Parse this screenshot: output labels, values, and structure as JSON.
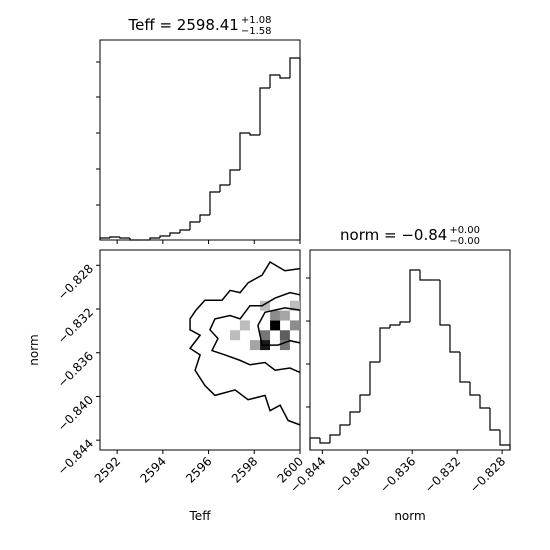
{
  "chart_data": [
    {
      "type": "histogram",
      "title": {
        "text": "Teff = 2598.41",
        "sup": "+1.08",
        "sub": "−1.58"
      },
      "color": "#000000",
      "bins": [
        2591.25,
        2591.6875,
        2592.125,
        2592.5625,
        2593,
        2593.4375,
        2593.875,
        2594.3125,
        2594.75,
        2595.1875,
        2595.625,
        2596.0625,
        2596.5,
        2596.9375,
        2597.375,
        2597.8125,
        2598.25,
        2598.6875,
        2599.125,
        2599.5625,
        2600
      ],
      "values": [
        2,
        3,
        2,
        0,
        0,
        2,
        4,
        7,
        10,
        18,
        25,
        48,
        55,
        70,
        107,
        105,
        152,
        165,
        162,
        182
      ],
      "xlim": [
        2591.25,
        2600
      ],
      "xticks": [
        2592,
        2594,
        2596,
        2598,
        2600
      ],
      "ylim": [
        0,
        200
      ],
      "yticks": [
        35,
        71,
        107,
        143,
        178
      ]
    },
    {
      "type": "contour",
      "xlabel": "Teff",
      "ylabel": "norm",
      "color": "#000000",
      "xlim": [
        2591.25,
        2600
      ],
      "xticks": [
        2592,
        2594,
        2596,
        2598,
        2600
      ],
      "ylim": [
        -0.8449,
        -0.8266
      ],
      "yticks": [
        {
          "value": -0.828,
          "label": "−0.828"
        },
        {
          "value": -0.832,
          "label": "−0.832"
        },
        {
          "value": -0.836,
          "label": "−0.836"
        },
        {
          "value": -0.84,
          "label": "−0.840"
        },
        {
          "value": -0.844,
          "label": "−0.844"
        }
      ],
      "contours": [
        {
          "x": [
            2600.0,
            2599.34,
            2598.69,
            2598.34,
            2597.73,
            2597.38,
            2596.94,
            2596.59,
            2595.84,
            2595.45,
            2595.19,
            2595.19,
            2595.63,
            2595.19,
            2595.63,
            2595.41,
            2595.84,
            2596.28,
            2597.16,
            2597.73,
            2598.47,
            2598.69,
            2599.13,
            2599.48,
            2600.0
          ],
          "y": [
            -0.8283,
            -0.8285,
            -0.8277,
            -0.8289,
            -0.8296,
            -0.8305,
            -0.8303,
            -0.8312,
            -0.8312,
            -0.8321,
            -0.8329,
            -0.8339,
            -0.8344,
            -0.8356,
            -0.8362,
            -0.8376,
            -0.839,
            -0.8399,
            -0.8394,
            -0.8403,
            -0.8399,
            -0.8413,
            -0.8408,
            -0.8422,
            -0.8426
          ]
        },
        {
          "x": [
            2600.0,
            2599.56,
            2598.91,
            2598.34,
            2597.81,
            2597.38,
            2596.94,
            2596.28,
            2596.06,
            2596.41,
            2596.15,
            2596.72,
            2597.38,
            2597.81,
            2598.47,
            2598.91,
            2599.56,
            2600.0
          ],
          "y": [
            -0.8307,
            -0.8305,
            -0.831,
            -0.8317,
            -0.8317,
            -0.8329,
            -0.8326,
            -0.8329,
            -0.8339,
            -0.8347,
            -0.8358,
            -0.8362,
            -0.8367,
            -0.8371,
            -0.8369,
            -0.8376,
            -0.8374,
            -0.8378
          ]
        },
        {
          "x": [
            2600.0,
            2599.34,
            2598.47,
            2598.16,
            2598.34,
            2599.04,
            2599.56,
            2600.0
          ],
          "y": [
            -0.8321,
            -0.8319,
            -0.8323,
            -0.8335,
            -0.8353,
            -0.8353,
            -0.8349,
            -0.8351
          ]
        }
      ],
      "cells": {
        "x": [
          2598.91,
          2598.47,
          2599.34,
          2598.47,
          2598.91,
          2599.34,
          2598.03,
          2597.59,
          2598.47,
          2599.78,
          2599.78,
          2599.34,
          2597.16
        ],
        "y": [
          -0.8335,
          -0.8344,
          -0.8344,
          -0.8353,
          -0.8326,
          -0.8326,
          -0.8353,
          -0.8335,
          -0.8317,
          -0.8317,
          -0.8335,
          -0.8353,
          -0.8344
        ],
        "values": [
          10,
          5,
          6,
          9,
          4,
          3,
          3,
          2,
          2,
          2,
          4,
          5,
          2
        ]
      }
    },
    {
      "type": "histogram",
      "title": {
        "text": "norm = −0.84",
        "sup": "+0.00",
        "sub": "−0.00"
      },
      "xlabel": "norm",
      "color": "#000000",
      "bins": [
        -0.8451,
        -0.84421,
        -0.84332,
        -0.84243,
        -0.84154,
        -0.84065,
        -0.83976,
        -0.83887,
        -0.83798,
        -0.83709,
        -0.8362,
        -0.83531,
        -0.83442,
        -0.83353,
        -0.83264,
        -0.83175,
        -0.83086,
        -0.82997,
        -0.82908,
        -0.82819,
        -0.8273
      ],
      "values": [
        12,
        7,
        15,
        25,
        38,
        55,
        88,
        122,
        125,
        128,
        180,
        170,
        170,
        125,
        98,
        68,
        55,
        42,
        20,
        5
      ],
      "xlim": [
        -0.8451,
        -0.8273
      ],
      "xticks": [
        {
          "value": -0.844,
          "label": "−0.844"
        },
        {
          "value": -0.84,
          "label": "−0.840"
        },
        {
          "value": -0.836,
          "label": "−0.836"
        },
        {
          "value": -0.832,
          "label": "−0.832"
        },
        {
          "value": -0.828,
          "label": "−0.828"
        }
      ],
      "ylim": [
        0,
        200
      ],
      "yticks": [
        43,
        86,
        129,
        172
      ]
    }
  ]
}
